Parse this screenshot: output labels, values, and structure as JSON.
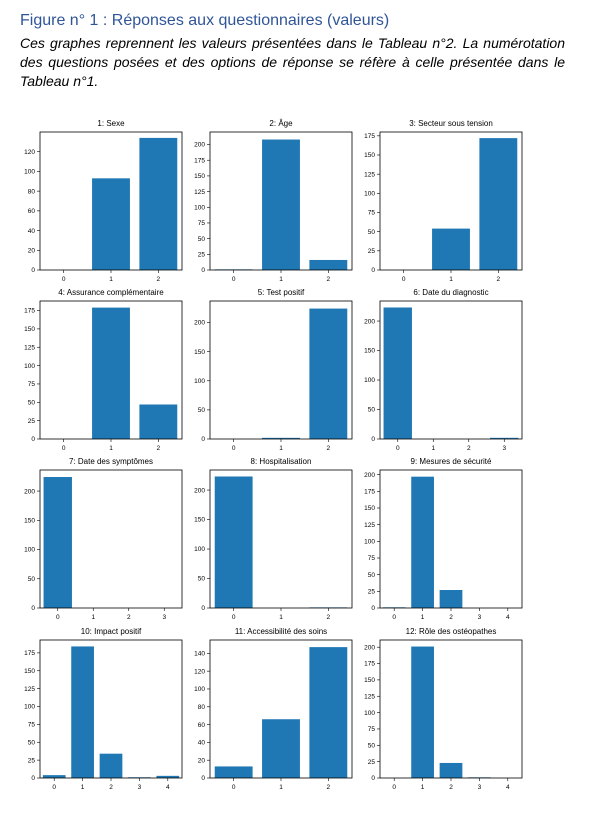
{
  "figure": {
    "title": "Figure n° 1 : Réponses aux questionnaires (valeurs)",
    "caption": "Ces graphes reprennent les valeurs présentées dans le Tableau n°2. La numérotation des questions posées et des options de réponse se réfère à celle présentée dans le Tableau n°1."
  },
  "colors": {
    "bar": "#1f77b4"
  },
  "chart_data": [
    {
      "type": "bar",
      "title": "1: Sexe",
      "categories": [
        "0",
        "1",
        "2"
      ],
      "values": [
        0,
        93,
        134
      ],
      "ylim": [
        0,
        140
      ],
      "yticks": [
        0,
        20,
        40,
        60,
        80,
        100,
        120
      ]
    },
    {
      "type": "bar",
      "title": "2: Âge",
      "categories": [
        "0",
        "1",
        "2"
      ],
      "values": [
        1,
        208,
        16
      ],
      "ylim": [
        0,
        220
      ],
      "yticks": [
        0,
        25,
        50,
        75,
        100,
        125,
        150,
        175,
        200
      ]
    },
    {
      "type": "bar",
      "title": "3: Secteur sous tension",
      "categories": [
        "0",
        "1",
        "2"
      ],
      "values": [
        0,
        54,
        172
      ],
      "ylim": [
        0,
        180
      ],
      "yticks": [
        0,
        25,
        50,
        75,
        100,
        125,
        150,
        175
      ]
    },
    {
      "type": "bar",
      "title": "4: Assurance complémentaire",
      "categories": [
        "0",
        "1",
        "2"
      ],
      "values": [
        0,
        179,
        47
      ],
      "ylim": [
        0,
        188
      ],
      "yticks": [
        0,
        25,
        50,
        75,
        100,
        125,
        150,
        175
      ]
    },
    {
      "type": "bar",
      "title": "5: Test positif",
      "categories": [
        "0",
        "1",
        "2"
      ],
      "values": [
        0,
        2,
        224
      ],
      "ylim": [
        0,
        237
      ],
      "yticks": [
        0,
        50,
        100,
        150,
        200
      ]
    },
    {
      "type": "bar",
      "title": "6: Date du diagnostic",
      "categories": [
        "0",
        "1",
        "2",
        "3"
      ],
      "values": [
        223,
        0,
        0,
        2
      ],
      "ylim": [
        0,
        234
      ],
      "yticks": [
        0,
        50,
        100,
        150,
        200
      ]
    },
    {
      "type": "bar",
      "title": "7: Date des symptômes",
      "categories": [
        "0",
        "1",
        "2",
        "3"
      ],
      "values": [
        224,
        0,
        0,
        0
      ],
      "ylim": [
        0,
        236
      ],
      "yticks": [
        0,
        50,
        100,
        150,
        200
      ]
    },
    {
      "type": "bar",
      "title": "8: Hospitalisation",
      "categories": [
        "0",
        "1",
        "2"
      ],
      "values": [
        223,
        0,
        1
      ],
      "ylim": [
        0,
        234
      ],
      "yticks": [
        0,
        50,
        100,
        150,
        200
      ]
    },
    {
      "type": "bar",
      "title": "9: Mesures de sécurité",
      "categories": [
        "0",
        "1",
        "2",
        "3",
        "4"
      ],
      "values": [
        1,
        197,
        27,
        0,
        0
      ],
      "ylim": [
        0,
        207
      ],
      "yticks": [
        0,
        25,
        50,
        75,
        100,
        125,
        150,
        175,
        200
      ]
    },
    {
      "type": "bar",
      "title": "10: Impact positif",
      "categories": [
        "0",
        "1",
        "2",
        "3",
        "4"
      ],
      "values": [
        4,
        184,
        34,
        1,
        3
      ],
      "ylim": [
        0,
        193
      ],
      "yticks": [
        0,
        25,
        50,
        75,
        100,
        125,
        150,
        175
      ]
    },
    {
      "type": "bar",
      "title": "11: Accessibilité des soins",
      "categories": [
        "0",
        "1",
        "2"
      ],
      "values": [
        13,
        66,
        147
      ],
      "ylim": [
        0,
        155
      ],
      "yticks": [
        0,
        20,
        40,
        60,
        80,
        100,
        120,
        140
      ]
    },
    {
      "type": "bar",
      "title": "12: Rôle des ostéopathes",
      "categories": [
        "0",
        "1",
        "2",
        "3",
        "4"
      ],
      "values": [
        0,
        201,
        23,
        1,
        0
      ],
      "ylim": [
        0,
        211
      ],
      "yticks": [
        0,
        25,
        50,
        75,
        100,
        125,
        150,
        175,
        200
      ]
    }
  ]
}
